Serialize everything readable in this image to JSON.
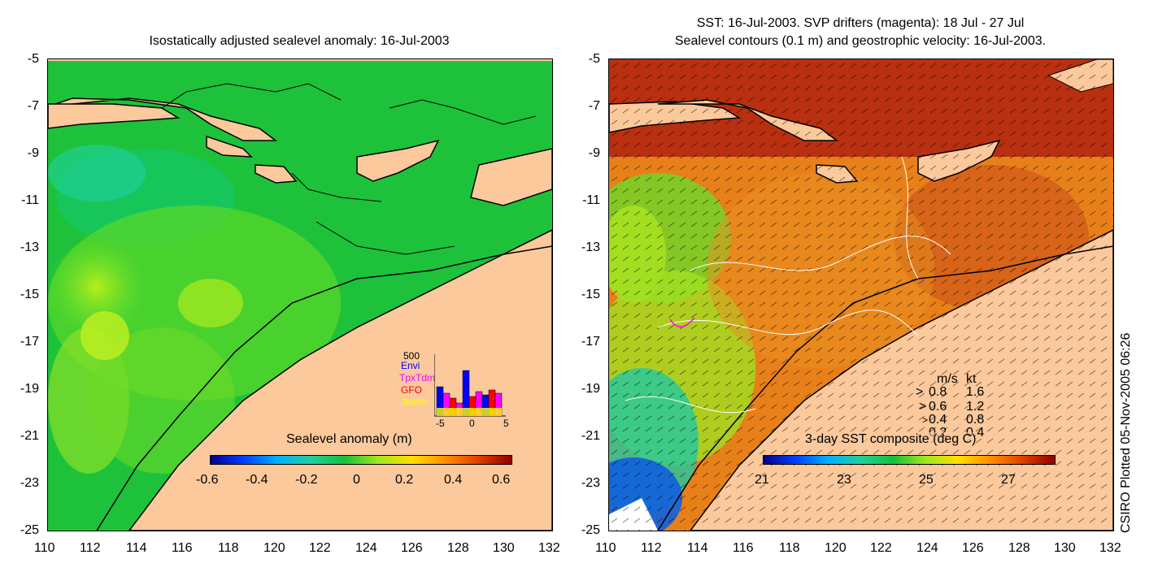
{
  "left": {
    "title": "Isostatically adjusted sealevel anomaly: 16-Jul-2003",
    "colorbar_title": "Sealevel anomaly (m)",
    "colorbar_ticks": [
      "-0.6",
      "-0.4",
      "-0.2",
      "0",
      "0.2",
      "0.4",
      "0.6"
    ],
    "inset": {
      "ymax_label": "500",
      "legend": [
        {
          "name": "Envi",
          "color": "#0000ff"
        },
        {
          "name": "TpxTdm",
          "color": "#ff00ff"
        },
        {
          "name": "GFO",
          "color": "#ff0000"
        },
        {
          "name": "Jason",
          "color": "#ffff00"
        }
      ],
      "x_ticks": [
        "-5",
        "0",
        "5"
      ]
    }
  },
  "right": {
    "title_line1": "SST: 16-Jul-2003. SVP drifters (magenta): 18 Jul - 27 Jul",
    "title_line2": "Sealevel contours (0.1 m) and geostrophic velocity: 16-Jul-2003.",
    "colorbar_title": "3-day SST composite (deg C)",
    "colorbar_ticks": [
      "21",
      "23",
      "25",
      "27"
    ],
    "velocity_legend": {
      "header_ms": "m/s",
      "header_kt": "kt",
      "rows": [
        {
          "ms": "0.8",
          "kt": "1.6"
        },
        {
          "ms": "0.6",
          "kt": "1.2"
        },
        {
          "ms": "0.4",
          "kt": "0.8"
        },
        {
          "ms": "0.2",
          "kt": "0.4"
        }
      ]
    }
  },
  "y_ticks": [
    "-5",
    "-7",
    "-9",
    "-11",
    "-13",
    "-15",
    "-17",
    "-19",
    "-21",
    "-23",
    "-25"
  ],
  "x_ticks": [
    "110",
    "112",
    "114",
    "116",
    "118",
    "120",
    "122",
    "124",
    "126",
    "128",
    "130",
    "132"
  ],
  "credit": "CSIRO Plotted 05-Nov-2005 06:26",
  "colors": {
    "land": "#fcc99c",
    "ocean_green": "#13c13c",
    "sst_orange": "#e8801a"
  }
}
